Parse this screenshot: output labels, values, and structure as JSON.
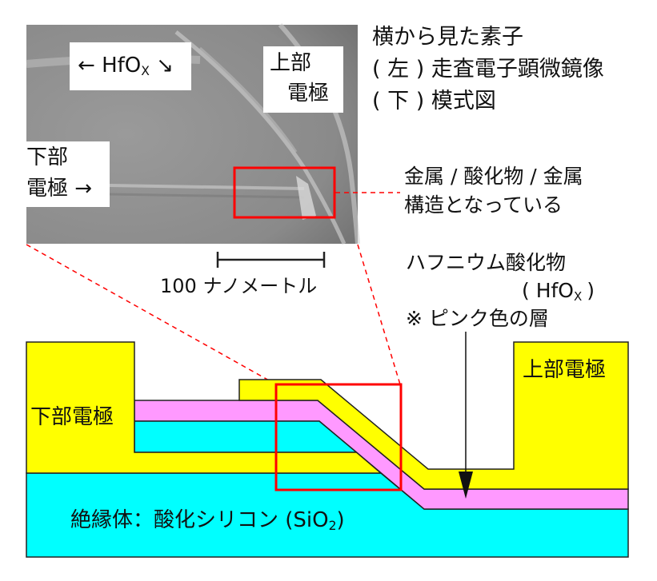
{
  "colors": {
    "electrode": "#ffff00",
    "oxide_layer": "#ff99ff",
    "insulator": "#00ffff",
    "highlight": "#ff0000"
  },
  "sem": {
    "hfox_label": {
      "arrow_left": "←",
      "text": "HfO",
      "sub": "X",
      "arrow_right": "↘"
    },
    "top_electrode_label": [
      "上部",
      "電極"
    ],
    "bottom_electrode_label": [
      "下部",
      "電極 →"
    ]
  },
  "caption": [
    "横から見た素子",
    "( 左 ) 走査電子顕微鏡像",
    "( 下 ) 模式図"
  ],
  "structure_note": [
    "金属 / 酸化物 / 金属",
    "構造となっている"
  ],
  "scale_bar": "100 ナノメートル",
  "hfox_note": {
    "line1": "ハフニウム酸化物",
    "line2_open": "( HfO",
    "line2_sub": "X",
    "line2_close": ")",
    "line3": "※ ピンク色の層"
  },
  "diagram": {
    "bottom_electrode": "下部電極",
    "top_electrode": "上部電極",
    "insulator_main": "絶縁体：酸化シリコン (SiO",
    "insulator_sub": "2",
    "insulator_close": ")"
  }
}
